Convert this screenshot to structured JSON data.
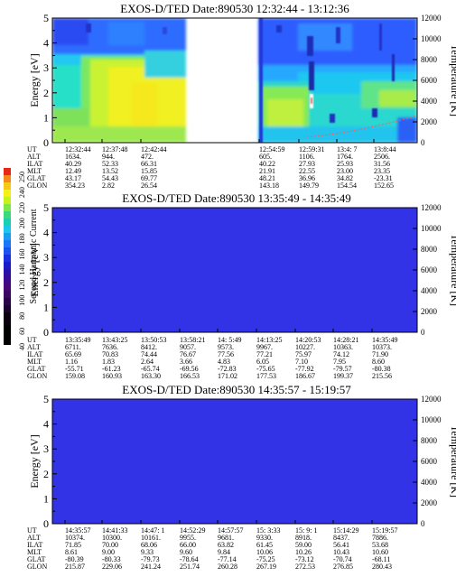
{
  "colorbar": {
    "label": "Second Harmonic Current",
    "ticks": [
      "40",
      "60",
      "80",
      "100",
      "120",
      "140",
      "160",
      "180",
      "200",
      "220",
      "240",
      "250"
    ]
  },
  "chart_data": [
    {
      "type": "heatmap",
      "title": "EXOS-D/TED   Date:890530   12:32:44 - 13:12:36",
      "ylabel": "Energy [eV]",
      "y2label": "Temperature [K]",
      "ylim": [
        0,
        5
      ],
      "y2lim": [
        0,
        12000
      ],
      "yticks": [
        "0",
        "1",
        "2",
        "3",
        "4",
        "5"
      ],
      "y2ticks": [
        "0",
        "2000",
        "4000",
        "6000",
        "8000",
        "10000",
        "12000"
      ],
      "data_gap": "no data between approx. 12:49 and 12:54 UT",
      "row_labels": [
        "UT",
        "ALT",
        "ILAT",
        "MLT",
        "GLAT",
        "GLON"
      ],
      "columns": [
        [
          "12:32:44",
          "1634.",
          "40.29",
          "12.49",
          "43.17",
          "354.23"
        ],
        [
          "12:37:48",
          "944.",
          "52.33",
          "13.52",
          "54.43",
          "2.82"
        ],
        [
          "12:42:44",
          "472.",
          "66.31",
          "15.85",
          "69.77",
          "26.54"
        ],
        [
          "12:54:59",
          "605.",
          "40.22",
          "21.91",
          "48.21",
          "143.18"
        ],
        [
          "12:59:31",
          "1106.",
          "27.93",
          "22.55",
          "36.96",
          "149.79"
        ],
        [
          "13:4: 7",
          "1764.",
          "25.93",
          "23.00",
          "34.82",
          "154.54"
        ],
        [
          "13:8:44",
          "2506.",
          "31.56",
          "23.35",
          "-23.31",
          "152.65"
        ]
      ]
    },
    {
      "type": "heatmap",
      "title": "EXOS-D/TED   Date:890530   13:35:49 - 14:35:49",
      "ylabel": "Energy [eV]",
      "y2label": "Temperature [K]",
      "ylim": [
        0,
        5
      ],
      "y2lim": [
        0,
        12000
      ],
      "yticks": [
        "0",
        "1",
        "2",
        "3",
        "4",
        "5"
      ],
      "y2ticks": [
        "0",
        "2000",
        "4000",
        "6000",
        "8000",
        "10000",
        "12000"
      ],
      "fill": "uniform lowest level (blue) across entire panel",
      "row_labels": [
        "UT",
        "ALT",
        "ILAT",
        "MLT",
        "GLAT",
        "GLON"
      ],
      "columns": [
        [
          "13:35:49",
          "6711.",
          "65.69",
          "1.16",
          "-55.71",
          "159.08"
        ],
        [
          "13:43:25",
          "7636.",
          "70.83",
          "1.83",
          "-61.23",
          "160.93"
        ],
        [
          "13:50:53",
          "8412.",
          "74.44",
          "2.64",
          "-65.74",
          "163.30"
        ],
        [
          "13:58:21",
          "9057.",
          "76.67",
          "3.66",
          "-69.56",
          "166.53"
        ],
        [
          "14: 5:49",
          "9573.",
          "77.56",
          "4.83",
          "-72.83",
          "171.02"
        ],
        [
          "14:13:25",
          "9967.",
          "77.21",
          "6.05",
          "-75.65",
          "177.53"
        ],
        [
          "14:20:53",
          "10227.",
          "75.97",
          "7.10",
          "-77.92",
          "186.67"
        ],
        [
          "14:28:21",
          "10363.",
          "74.12",
          "7.95",
          "-79.57",
          "199.37"
        ],
        [
          "14:35:49",
          "10373.",
          "71.90",
          "8.60",
          "-80.38",
          "215.56"
        ]
      ]
    },
    {
      "type": "heatmap",
      "title": "EXOS-D/TED   Date:890530   14:35:57 - 15:19:57",
      "ylabel": "Energy [eV]",
      "y2label": "Temperature [K]",
      "ylim": [
        0,
        5
      ],
      "y2lim": [
        0,
        12000
      ],
      "yticks": [
        "0",
        "1",
        "2",
        "3",
        "4",
        "5"
      ],
      "y2ticks": [
        "0",
        "2000",
        "4000",
        "6000",
        "8000",
        "10000",
        "12000"
      ],
      "fill": "uniform lowest level (blue) across entire panel",
      "row_labels": [
        "UT",
        "ALT",
        "ILAT",
        "MLT",
        "GLAT",
        "GLON"
      ],
      "columns": [
        [
          "14:35:57",
          "10374.",
          "71.85",
          "8.61",
          "-80.39",
          "215.87"
        ],
        [
          "14:41:33",
          "10300.",
          "70.00",
          "9.00",
          "-80.33",
          "229.06"
        ],
        [
          "14:47: 1",
          "10161.",
          "68.06",
          "9.33",
          "-79.73",
          "241.24"
        ],
        [
          "14:52:29",
          "9955.",
          "66.00",
          "9.60",
          "-78.64",
          "251.74"
        ],
        [
          "14:57:57",
          "9681.",
          "63.82",
          "9.84",
          "-77.14",
          "260.28"
        ],
        [
          "15: 3:33",
          "9330.",
          "61.45",
          "10.06",
          "-75.25",
          "267.19"
        ],
        [
          "15: 9: 1",
          "8918.",
          "59.00",
          "10.26",
          "-73.12",
          "272.53"
        ],
        [
          "15:14:29",
          "8437.",
          "56.41",
          "10.43",
          "-70.74",
          "276.85"
        ],
        [
          "15:19:57",
          "7886.",
          "53.68",
          "10.60",
          "-68.11",
          "280.43"
        ]
      ]
    }
  ]
}
